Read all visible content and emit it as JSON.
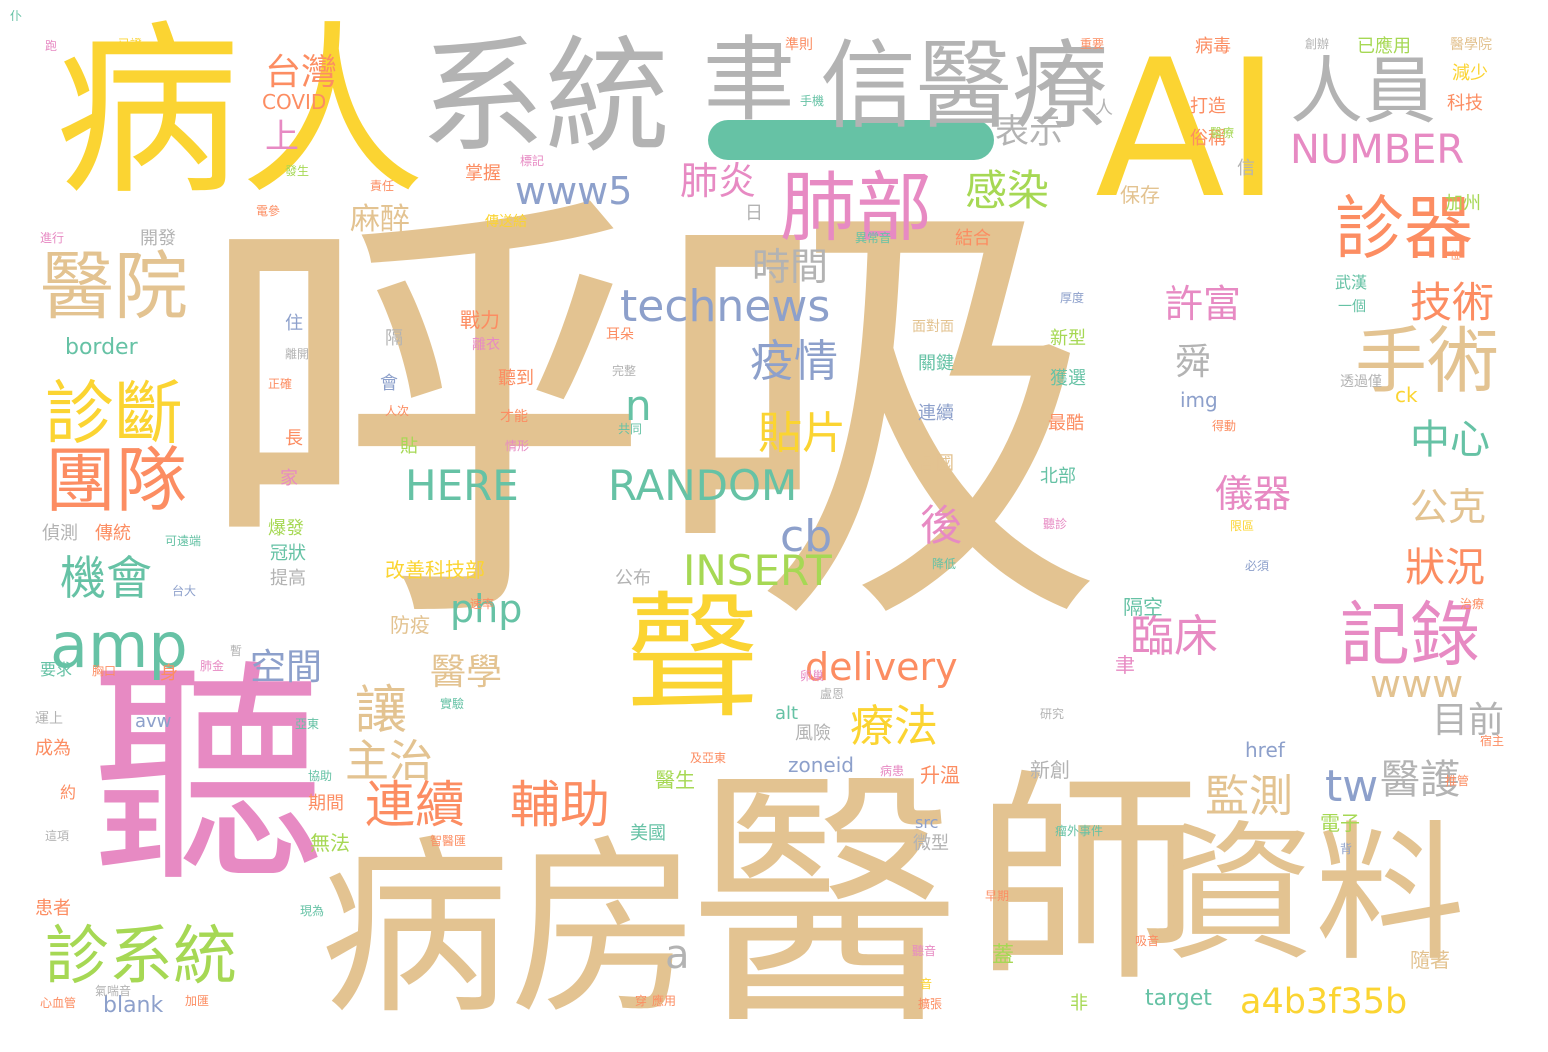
{
  "palette": {
    "tan": "#e3c391",
    "yellow": "#fbd432",
    "gray": "#b3b3b3",
    "pink": "#e78ac3",
    "orange": "#fc8d62",
    "green": "#a6d854",
    "teal": "#66c2a5",
    "blue": "#8da0cb"
  },
  "words": [
    {
      "text": "呼吸",
      "color": "tan"
    },
    {
      "text": "醫",
      "color": "tan"
    },
    {
      "text": "師",
      "color": "tan"
    },
    {
      "text": "病房",
      "color": "tan"
    },
    {
      "text": "聽",
      "color": "pink"
    },
    {
      "text": "病人",
      "color": "yellow"
    },
    {
      "text": "AI",
      "color": "yellow"
    },
    {
      "text": "系統",
      "color": "gray"
    },
    {
      "text": "聿",
      "color": "gray"
    },
    {
      "text": "信醫療",
      "color": "gray"
    },
    {
      "text": "聲",
      "color": "yellow"
    },
    {
      "text": "資料",
      "color": "tan"
    },
    {
      "text": "人員",
      "color": "gray"
    },
    {
      "text": "肺部",
      "color": "pink"
    },
    {
      "text": "診器",
      "color": "orange"
    },
    {
      "text": "醫院",
      "color": "tan"
    },
    {
      "text": "手術",
      "color": "tan"
    },
    {
      "text": "診斷",
      "color": "yellow"
    },
    {
      "text": "團隊",
      "color": "orange"
    },
    {
      "text": "amp",
      "color": "teal"
    },
    {
      "text": "診系統",
      "color": "green"
    },
    {
      "text": "記錄",
      "color": "pink"
    },
    {
      "text": "technews",
      "color": "blue"
    },
    {
      "text": "www5",
      "color": "blue"
    },
    {
      "text": "NUMBER",
      "color": "pink"
    },
    {
      "text": "RANDOM",
      "color": "teal"
    },
    {
      "text": "HERE",
      "color": "teal"
    },
    {
      "text": "INSERT",
      "color": "green"
    },
    {
      "text": "delivery",
      "color": "orange"
    },
    {
      "text": "php",
      "color": "teal"
    },
    {
      "text": "a4b3f35b",
      "color": "yellow"
    },
    {
      "text": "www",
      "color": "tan"
    },
    {
      "text": "連續",
      "color": "orange"
    },
    {
      "text": "輔助",
      "color": "orange"
    },
    {
      "text": "讓",
      "color": "tan"
    },
    {
      "text": "主治",
      "color": "tan"
    },
    {
      "text": "療法",
      "color": "yellow"
    },
    {
      "text": "臨床",
      "color": "pink"
    },
    {
      "text": "監測",
      "color": "tan"
    },
    {
      "text": "疫情",
      "color": "blue"
    },
    {
      "text": "貼片",
      "color": "yellow"
    },
    {
      "text": "時間",
      "color": "gray"
    },
    {
      "text": "感染",
      "color": "green"
    },
    {
      "text": "技術",
      "color": "orange"
    },
    {
      "text": "許富",
      "color": "pink"
    },
    {
      "text": "中心",
      "color": "teal"
    },
    {
      "text": "儀器",
      "color": "pink"
    },
    {
      "text": "公克",
      "color": "tan"
    },
    {
      "text": "狀況",
      "color": "orange"
    },
    {
      "text": "醫護",
      "color": "gray"
    },
    {
      "text": "目前",
      "color": "gray"
    },
    {
      "text": "機會",
      "color": "teal"
    },
    {
      "text": "空間",
      "color": "blue"
    },
    {
      "text": "醫學",
      "color": "tan"
    },
    {
      "text": "台灣",
      "color": "orange"
    },
    {
      "text": "上",
      "color": "pink"
    },
    {
      "text": "肺炎",
      "color": "pink"
    },
    {
      "text": "表示",
      "color": "gray"
    },
    {
      "text": "麻醉",
      "color": "tan"
    },
    {
      "text": "cb",
      "color": "blue"
    },
    {
      "text": "n",
      "color": "teal"
    },
    {
      "text": "tw",
      "color": "blue"
    },
    {
      "text": "後",
      "color": "pink"
    },
    {
      "text": "舜",
      "color": "gray"
    },
    {
      "text": "a",
      "color": "gray"
    },
    {
      "text": "border",
      "color": "teal"
    },
    {
      "text": "COVID",
      "color": "orange"
    },
    {
      "text": "已應用",
      "color": "green"
    },
    {
      "text": "醫學院",
      "color": "tan"
    },
    {
      "text": "病毒",
      "color": "orange"
    },
    {
      "text": "減少",
      "color": "yellow"
    },
    {
      "text": "科技",
      "color": "orange"
    },
    {
      "text": "打造",
      "color": "orange"
    },
    {
      "text": "俗稱",
      "color": "orange"
    },
    {
      "text": "保存",
      "color": "tan"
    },
    {
      "text": "加州",
      "color": "green"
    },
    {
      "text": "結合",
      "color": "orange"
    },
    {
      "text": "傳送給",
      "color": "yellow"
    },
    {
      "text": "開發",
      "color": "gray"
    },
    {
      "text": "掌握",
      "color": "orange"
    },
    {
      "text": "武漢",
      "color": "teal"
    },
    {
      "text": "一個",
      "color": "teal"
    },
    {
      "text": "戰力",
      "color": "orange"
    },
    {
      "text": "新型",
      "color": "green"
    },
    {
      "text": "獲選",
      "color": "teal"
    },
    {
      "text": "最酷",
      "color": "orange"
    },
    {
      "text": "北部",
      "color": "teal"
    },
    {
      "text": "關鍵",
      "color": "teal"
    },
    {
      "text": "連續",
      "color": "blue"
    },
    {
      "text": "各國",
      "color": "tan"
    },
    {
      "text": "聽到",
      "color": "orange"
    },
    {
      "text": "隔空",
      "color": "teal"
    },
    {
      "text": "防疫",
      "color": "tan"
    },
    {
      "text": "改善科技部",
      "color": "yellow"
    },
    {
      "text": "升溫",
      "color": "orange"
    },
    {
      "text": "新創",
      "color": "gray"
    },
    {
      "text": "醫生",
      "color": "green"
    },
    {
      "text": "電子",
      "color": "green"
    },
    {
      "text": "美國",
      "color": "teal"
    },
    {
      "text": "無法",
      "color": "green"
    },
    {
      "text": "微型",
      "color": "gray"
    },
    {
      "text": "期間",
      "color": "orange"
    },
    {
      "text": "成為",
      "color": "orange"
    },
    {
      "text": "患者",
      "color": "orange"
    },
    {
      "text": "偵測",
      "color": "gray"
    },
    {
      "text": "傳統",
      "color": "orange"
    },
    {
      "text": "冠狀",
      "color": "teal"
    },
    {
      "text": "爆發",
      "color": "green"
    },
    {
      "text": "提高",
      "color": "gray"
    },
    {
      "text": "蓋",
      "color": "green"
    },
    {
      "text": "隨著",
      "color": "tan"
    },
    {
      "text": "img",
      "color": "blue"
    },
    {
      "text": "ck",
      "color": "yellow"
    },
    {
      "text": "href",
      "color": "blue"
    },
    {
      "text": "alt",
      "color": "teal"
    },
    {
      "text": "src",
      "color": "blue"
    },
    {
      "text": "zoneid",
      "color": "blue"
    },
    {
      "text": "target",
      "color": "teal"
    },
    {
      "text": "blank",
      "color": "blue"
    },
    {
      "text": "avw",
      "color": "blue"
    },
    {
      "text": "風險",
      "color": "gray"
    },
    {
      "text": "公布",
      "color": "gray"
    },
    {
      "text": "住",
      "color": "blue"
    },
    {
      "text": "隔",
      "color": "gray"
    },
    {
      "text": "會",
      "color": "blue"
    },
    {
      "text": "貼",
      "color": "green"
    },
    {
      "text": "家",
      "color": "pink"
    },
    {
      "text": "長",
      "color": "orange"
    },
    {
      "text": "日",
      "color": "gray"
    },
    {
      "text": "信",
      "color": "gray"
    },
    {
      "text": "人",
      "color": "gray"
    },
    {
      "text": "身",
      "color": "orange"
    },
    {
      "text": "聿",
      "color": "pink"
    },
    {
      "text": "約",
      "color": "orange"
    },
    {
      "text": "非",
      "color": "green"
    },
    {
      "text": "穿",
      "color": "orange"
    },
    {
      "text": "跑",
      "color": "pink"
    },
    {
      "text": "已證",
      "color": "yellow"
    },
    {
      "text": "發生",
      "color": "green"
    },
    {
      "text": "手機",
      "color": "teal"
    },
    {
      "text": "準則",
      "color": "orange"
    },
    {
      "text": "重要",
      "color": "orange"
    },
    {
      "text": "創辦",
      "color": "gray"
    },
    {
      "text": "電參",
      "color": "orange"
    },
    {
      "text": "責任",
      "color": "orange"
    },
    {
      "text": "標記",
      "color": "pink"
    },
    {
      "text": "醫療",
      "color": "green"
    },
    {
      "text": "進行",
      "color": "pink"
    },
    {
      "text": "異常音",
      "color": "teal"
    },
    {
      "text": "位",
      "color": "orange"
    },
    {
      "text": "厚度",
      "color": "blue"
    },
    {
      "text": "耳朵",
      "color": "orange"
    },
    {
      "text": "面對面",
      "color": "tan"
    },
    {
      "text": "離衣",
      "color": "pink"
    },
    {
      "text": "透過僅",
      "color": "gray"
    },
    {
      "text": "才能",
      "color": "orange"
    },
    {
      "text": "完整",
      "color": "gray"
    },
    {
      "text": "得動",
      "color": "orange"
    },
    {
      "text": "情形",
      "color": "pink"
    },
    {
      "text": "共同",
      "color": "teal"
    },
    {
      "text": "人次",
      "color": "orange"
    },
    {
      "text": "正確",
      "color": "orange"
    },
    {
      "text": "聽診",
      "color": "pink"
    },
    {
      "text": "限區",
      "color": "yellow"
    },
    {
      "text": "可遠端",
      "color": "teal"
    },
    {
      "text": "台大",
      "color": "blue"
    },
    {
      "text": "降低",
      "color": "teal"
    },
    {
      "text": "必須",
      "color": "blue"
    },
    {
      "text": "速率",
      "color": "orange"
    },
    {
      "text": "要求",
      "color": "teal"
    },
    {
      "text": "胸口",
      "color": "orange"
    },
    {
      "text": "肺金",
      "color": "pink"
    },
    {
      "text": "盧恩",
      "color": "gray"
    },
    {
      "text": "運上",
      "color": "gray"
    },
    {
      "text": "亞東",
      "color": "teal"
    },
    {
      "text": "實驗",
      "color": "teal"
    },
    {
      "text": "及亞東",
      "color": "orange"
    },
    {
      "text": "病患",
      "color": "pink"
    },
    {
      "text": "研究",
      "color": "gray"
    },
    {
      "text": "推管",
      "color": "orange"
    },
    {
      "text": "這項",
      "color": "gray"
    },
    {
      "text": "協助",
      "color": "teal"
    },
    {
      "text": "智醫匯",
      "color": "orange"
    },
    {
      "text": "瘤外事件",
      "color": "teal"
    },
    {
      "text": "現為",
      "color": "teal"
    },
    {
      "text": "早期",
      "color": "orange"
    },
    {
      "text": "聽音",
      "color": "pink"
    },
    {
      "text": "吸音",
      "color": "orange"
    },
    {
      "text": "背",
      "color": "blue"
    },
    {
      "text": "音",
      "color": "yellow"
    },
    {
      "text": "擴張",
      "color": "orange"
    },
    {
      "text": "應用",
      "color": "orange"
    },
    {
      "text": "加匯",
      "color": "orange"
    },
    {
      "text": "心血管",
      "color": "orange"
    },
    {
      "text": "氣喘音",
      "color": "gray"
    },
    {
      "text": "卵巢",
      "color": "pink"
    },
    {
      "text": "離開",
      "color": "gray"
    },
    {
      "text": "治療",
      "color": "orange"
    },
    {
      "text": "宿主",
      "color": "orange"
    },
    {
      "text": "暫",
      "color": "gray"
    },
    {
      "text": "仆",
      "color": "teal"
    }
  ]
}
